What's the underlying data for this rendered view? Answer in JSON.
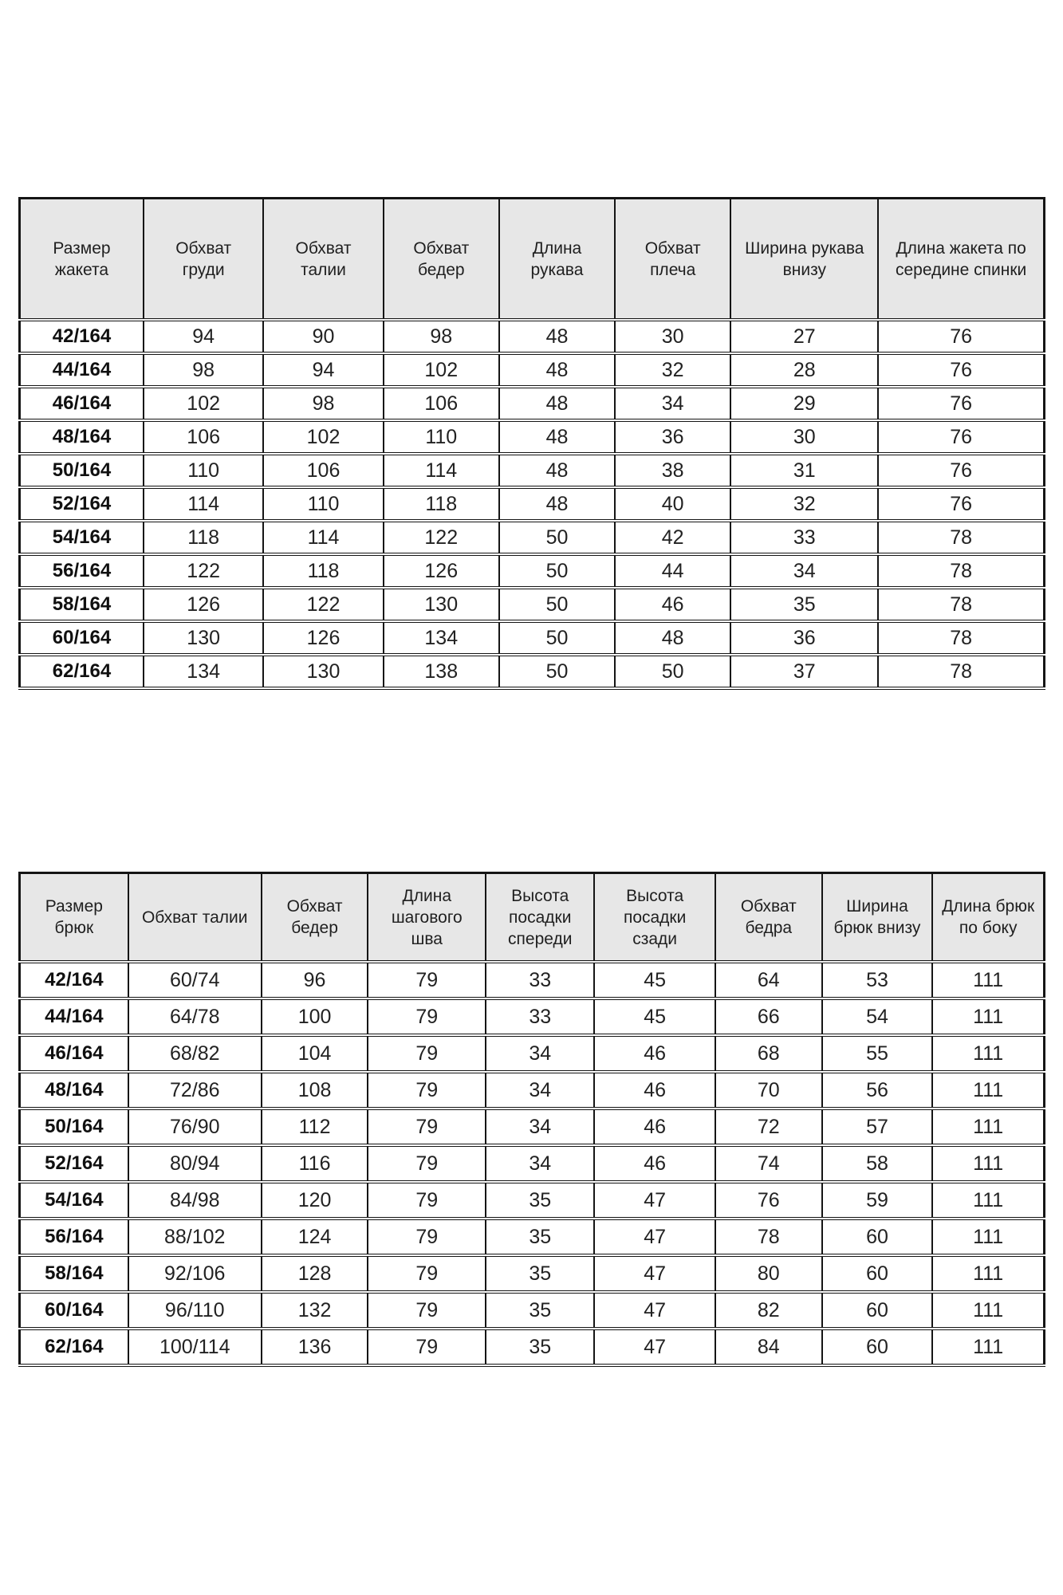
{
  "page": {
    "language": "ru",
    "description_visible": false
  },
  "style": {
    "header_bg": "#e7e7e7",
    "border_color": "#151515",
    "cell_bg": "#ffffff",
    "text_color": "#1f1f1f"
  },
  "tables": {
    "jacket": {
      "name": "jacket-size-table",
      "headers": [
        "Размер жакета",
        "Обхват груди",
        "Обхват талии",
        "Обхват бедер",
        "Длина рукава",
        "Обхват плеча",
        "Ширина рукава внизу",
        "Длина жакета по середине спинки"
      ],
      "rows": [
        [
          "42/164",
          "94",
          "90",
          "98",
          "48",
          "30",
          "27",
          "76"
        ],
        [
          "44/164",
          "98",
          "94",
          "102",
          "48",
          "32",
          "28",
          "76"
        ],
        [
          "46/164",
          "102",
          "98",
          "106",
          "48",
          "34",
          "29",
          "76"
        ],
        [
          "48/164",
          "106",
          "102",
          "110",
          "48",
          "36",
          "30",
          "76"
        ],
        [
          "50/164",
          "110",
          "106",
          "114",
          "48",
          "38",
          "31",
          "76"
        ],
        [
          "52/164",
          "114",
          "110",
          "118",
          "48",
          "40",
          "32",
          "76"
        ],
        [
          "54/164",
          "118",
          "114",
          "122",
          "50",
          "42",
          "33",
          "78"
        ],
        [
          "56/164",
          "122",
          "118",
          "126",
          "50",
          "44",
          "34",
          "78"
        ],
        [
          "58/164",
          "126",
          "122",
          "130",
          "50",
          "46",
          "35",
          "78"
        ],
        [
          "60/164",
          "130",
          "126",
          "134",
          "50",
          "48",
          "36",
          "78"
        ],
        [
          "62/164",
          "134",
          "130",
          "138",
          "50",
          "50",
          "37",
          "78"
        ]
      ]
    },
    "pants": {
      "name": "pants-size-table",
      "headers": [
        "Размер брюк",
        "Обхват талии",
        "Обхват бедер",
        "Длина шагового шва",
        "Высота посадки спереди",
        "Высота посадки сзади",
        "Обхват бедра",
        "Ширина брюк внизу",
        "Длина брюк по боку"
      ],
      "rows": [
        [
          "42/164",
          "60/74",
          "96",
          "79",
          "33",
          "45",
          "64",
          "53",
          "111"
        ],
        [
          "44/164",
          "64/78",
          "100",
          "79",
          "33",
          "45",
          "66",
          "54",
          "111"
        ],
        [
          "46/164",
          "68/82",
          "104",
          "79",
          "34",
          "46",
          "68",
          "55",
          "111"
        ],
        [
          "48/164",
          "72/86",
          "108",
          "79",
          "34",
          "46",
          "70",
          "56",
          "111"
        ],
        [
          "50/164",
          "76/90",
          "112",
          "79",
          "34",
          "46",
          "72",
          "57",
          "111"
        ],
        [
          "52/164",
          "80/94",
          "116",
          "79",
          "34",
          "46",
          "74",
          "58",
          "111"
        ],
        [
          "54/164",
          "84/98",
          "120",
          "79",
          "35",
          "47",
          "76",
          "59",
          "111"
        ],
        [
          "56/164",
          "88/102",
          "124",
          "79",
          "35",
          "47",
          "78",
          "60",
          "111"
        ],
        [
          "58/164",
          "92/106",
          "128",
          "79",
          "35",
          "47",
          "80",
          "60",
          "111"
        ],
        [
          "60/164",
          "96/110",
          "132",
          "79",
          "35",
          "47",
          "82",
          "60",
          "111"
        ],
        [
          "62/164",
          "100/114",
          "136",
          "79",
          "35",
          "47",
          "84",
          "60",
          "111"
        ]
      ]
    }
  }
}
